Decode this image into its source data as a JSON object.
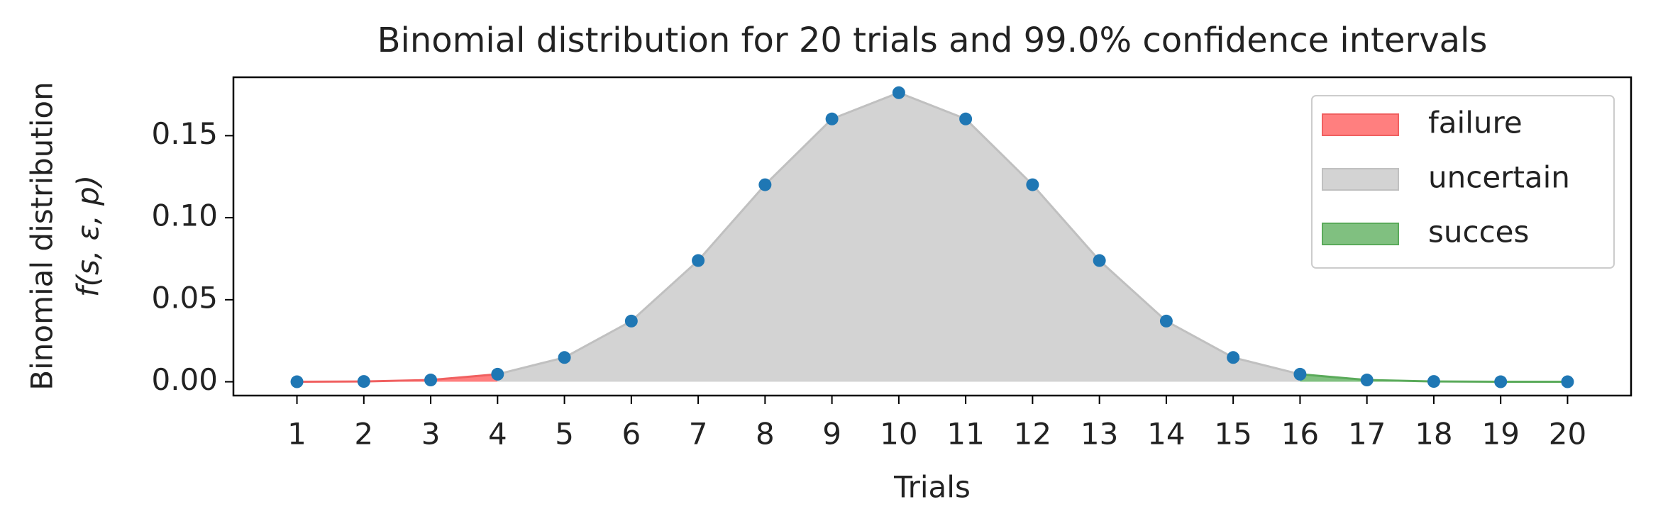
{
  "chart_data": {
    "type": "area",
    "title": "Binomial distribution for 20 trials and 99.0% confidence intervals",
    "xlabel": "Trials",
    "ylabel": [
      "Binomial distribution",
      "f(s, ε, p)"
    ],
    "x": [
      1,
      2,
      3,
      4,
      5,
      6,
      7,
      8,
      9,
      10,
      11,
      12,
      13,
      14,
      15,
      16,
      17,
      18,
      19,
      20
    ],
    "values": [
      2e-05,
      0.0002,
      0.0011,
      0.0046,
      0.0148,
      0.037,
      0.0739,
      0.1201,
      0.1602,
      0.1762,
      0.1602,
      0.1201,
      0.0739,
      0.037,
      0.0148,
      0.0046,
      0.0011,
      0.0002,
      2e-05,
      1e-06
    ],
    "point_color": "#1f77b4",
    "series": [
      {
        "name": "failure",
        "color": "#ff7f7f",
        "edge": "#f06060",
        "range": [
          1,
          4
        ]
      },
      {
        "name": "uncertain",
        "color": "#d3d3d3",
        "edge": "#c0c0c0",
        "range": [
          4,
          16
        ]
      },
      {
        "name": "succes",
        "color": "#80c080",
        "edge": "#5aaa5a",
        "range": [
          16,
          20
        ]
      }
    ],
    "xlim": [
      0.05,
      20.95
    ],
    "ylim": [
      -0.0084,
      0.1856
    ],
    "xticks": [
      1,
      2,
      3,
      4,
      5,
      6,
      7,
      8,
      9,
      10,
      11,
      12,
      13,
      14,
      15,
      16,
      17,
      18,
      19,
      20
    ],
    "yticks": [
      {
        "value": 0,
        "label": "0.00"
      },
      {
        "value": 0.05,
        "label": "0.05"
      },
      {
        "value": 0.1,
        "label": "0.10"
      },
      {
        "value": 0.15,
        "label": "0.15"
      }
    ],
    "legend": "upper right",
    "grid": false
  }
}
